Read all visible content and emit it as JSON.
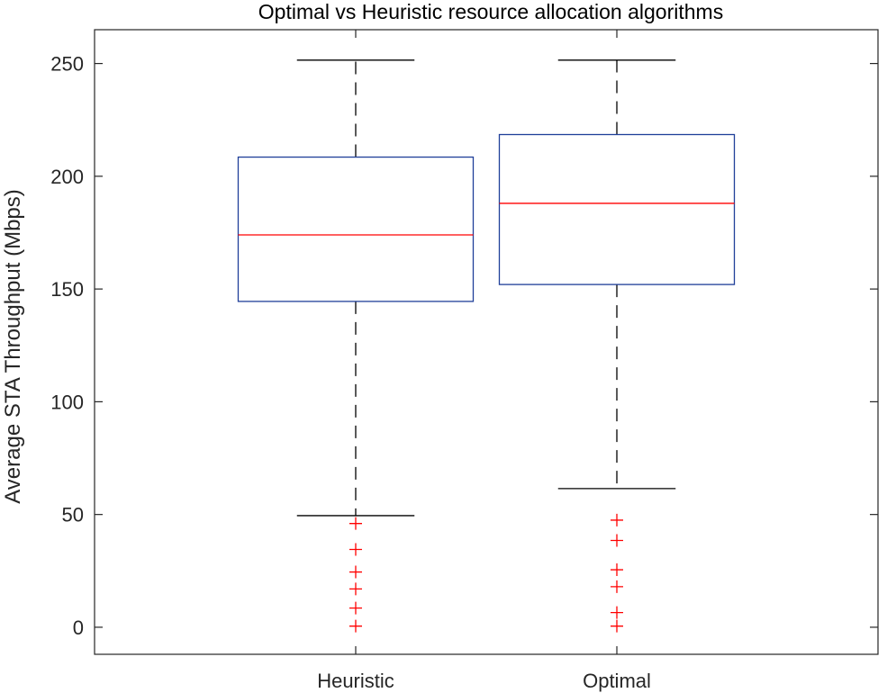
{
  "chart_data": {
    "type": "box",
    "title": "Optimal vs Heuristic resource allocation algorithms",
    "xlabel": "",
    "ylabel": "Average STA Throughput (Mbps)",
    "ylim": [
      -12,
      265
    ],
    "yticks": [
      0,
      50,
      100,
      150,
      200,
      250
    ],
    "categories": [
      "Heuristic",
      "Optimal"
    ],
    "boxes": [
      {
        "category": "Heuristic",
        "whisker_low": 49.5,
        "q1": 144.5,
        "median": 174,
        "q3": 208.5,
        "whisker_high": 251.5,
        "outliers": [
          46,
          34.5,
          24.5,
          17,
          8.5,
          0.5
        ]
      },
      {
        "category": "Optimal",
        "whisker_low": 61.5,
        "q1": 152,
        "median": 188,
        "q3": 218.5,
        "whisker_high": 251.5,
        "outliers": [
          47.5,
          38.5,
          25.5,
          18,
          6.5,
          0.5
        ]
      }
    ],
    "grid": false,
    "colors": {
      "box": "#1f3f99",
      "median": "#ff0000",
      "whisker": "#000000",
      "outlier": "#ff0000",
      "axis": "#262626"
    }
  }
}
